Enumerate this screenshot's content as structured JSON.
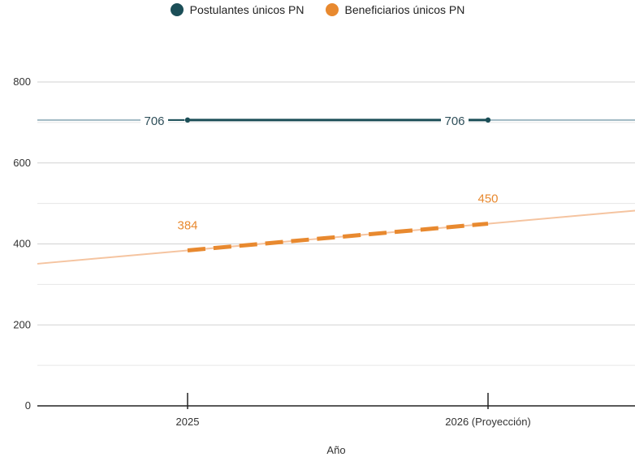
{
  "chart_data": {
    "type": "line",
    "title": "",
    "xlabel": "Año",
    "ylabel": "",
    "categories": [
      "2025",
      "2026 (Proyección)"
    ],
    "ylim": [
      0,
      800
    ],
    "yticks": [
      0,
      200,
      400,
      600,
      800
    ],
    "grid": true,
    "legend_position": "top-center",
    "series": [
      {
        "name": "Postulantes únicos PN",
        "values": [
          706,
          706
        ],
        "color": "#1b4e57",
        "labels": [
          "706",
          "706"
        ],
        "style": "solid"
      },
      {
        "name": "Beneficiarios únicos PN",
        "values": [
          384,
          450
        ],
        "color": "#e8892f",
        "labels": [
          "384",
          "450"
        ],
        "style": "dashed"
      }
    ],
    "trendlines": [
      {
        "series": "Postulantes únicos PN",
        "color": "#9fb8c3"
      },
      {
        "series": "Beneficiarios únicos PN",
        "color": "#f5c4a0"
      }
    ]
  }
}
